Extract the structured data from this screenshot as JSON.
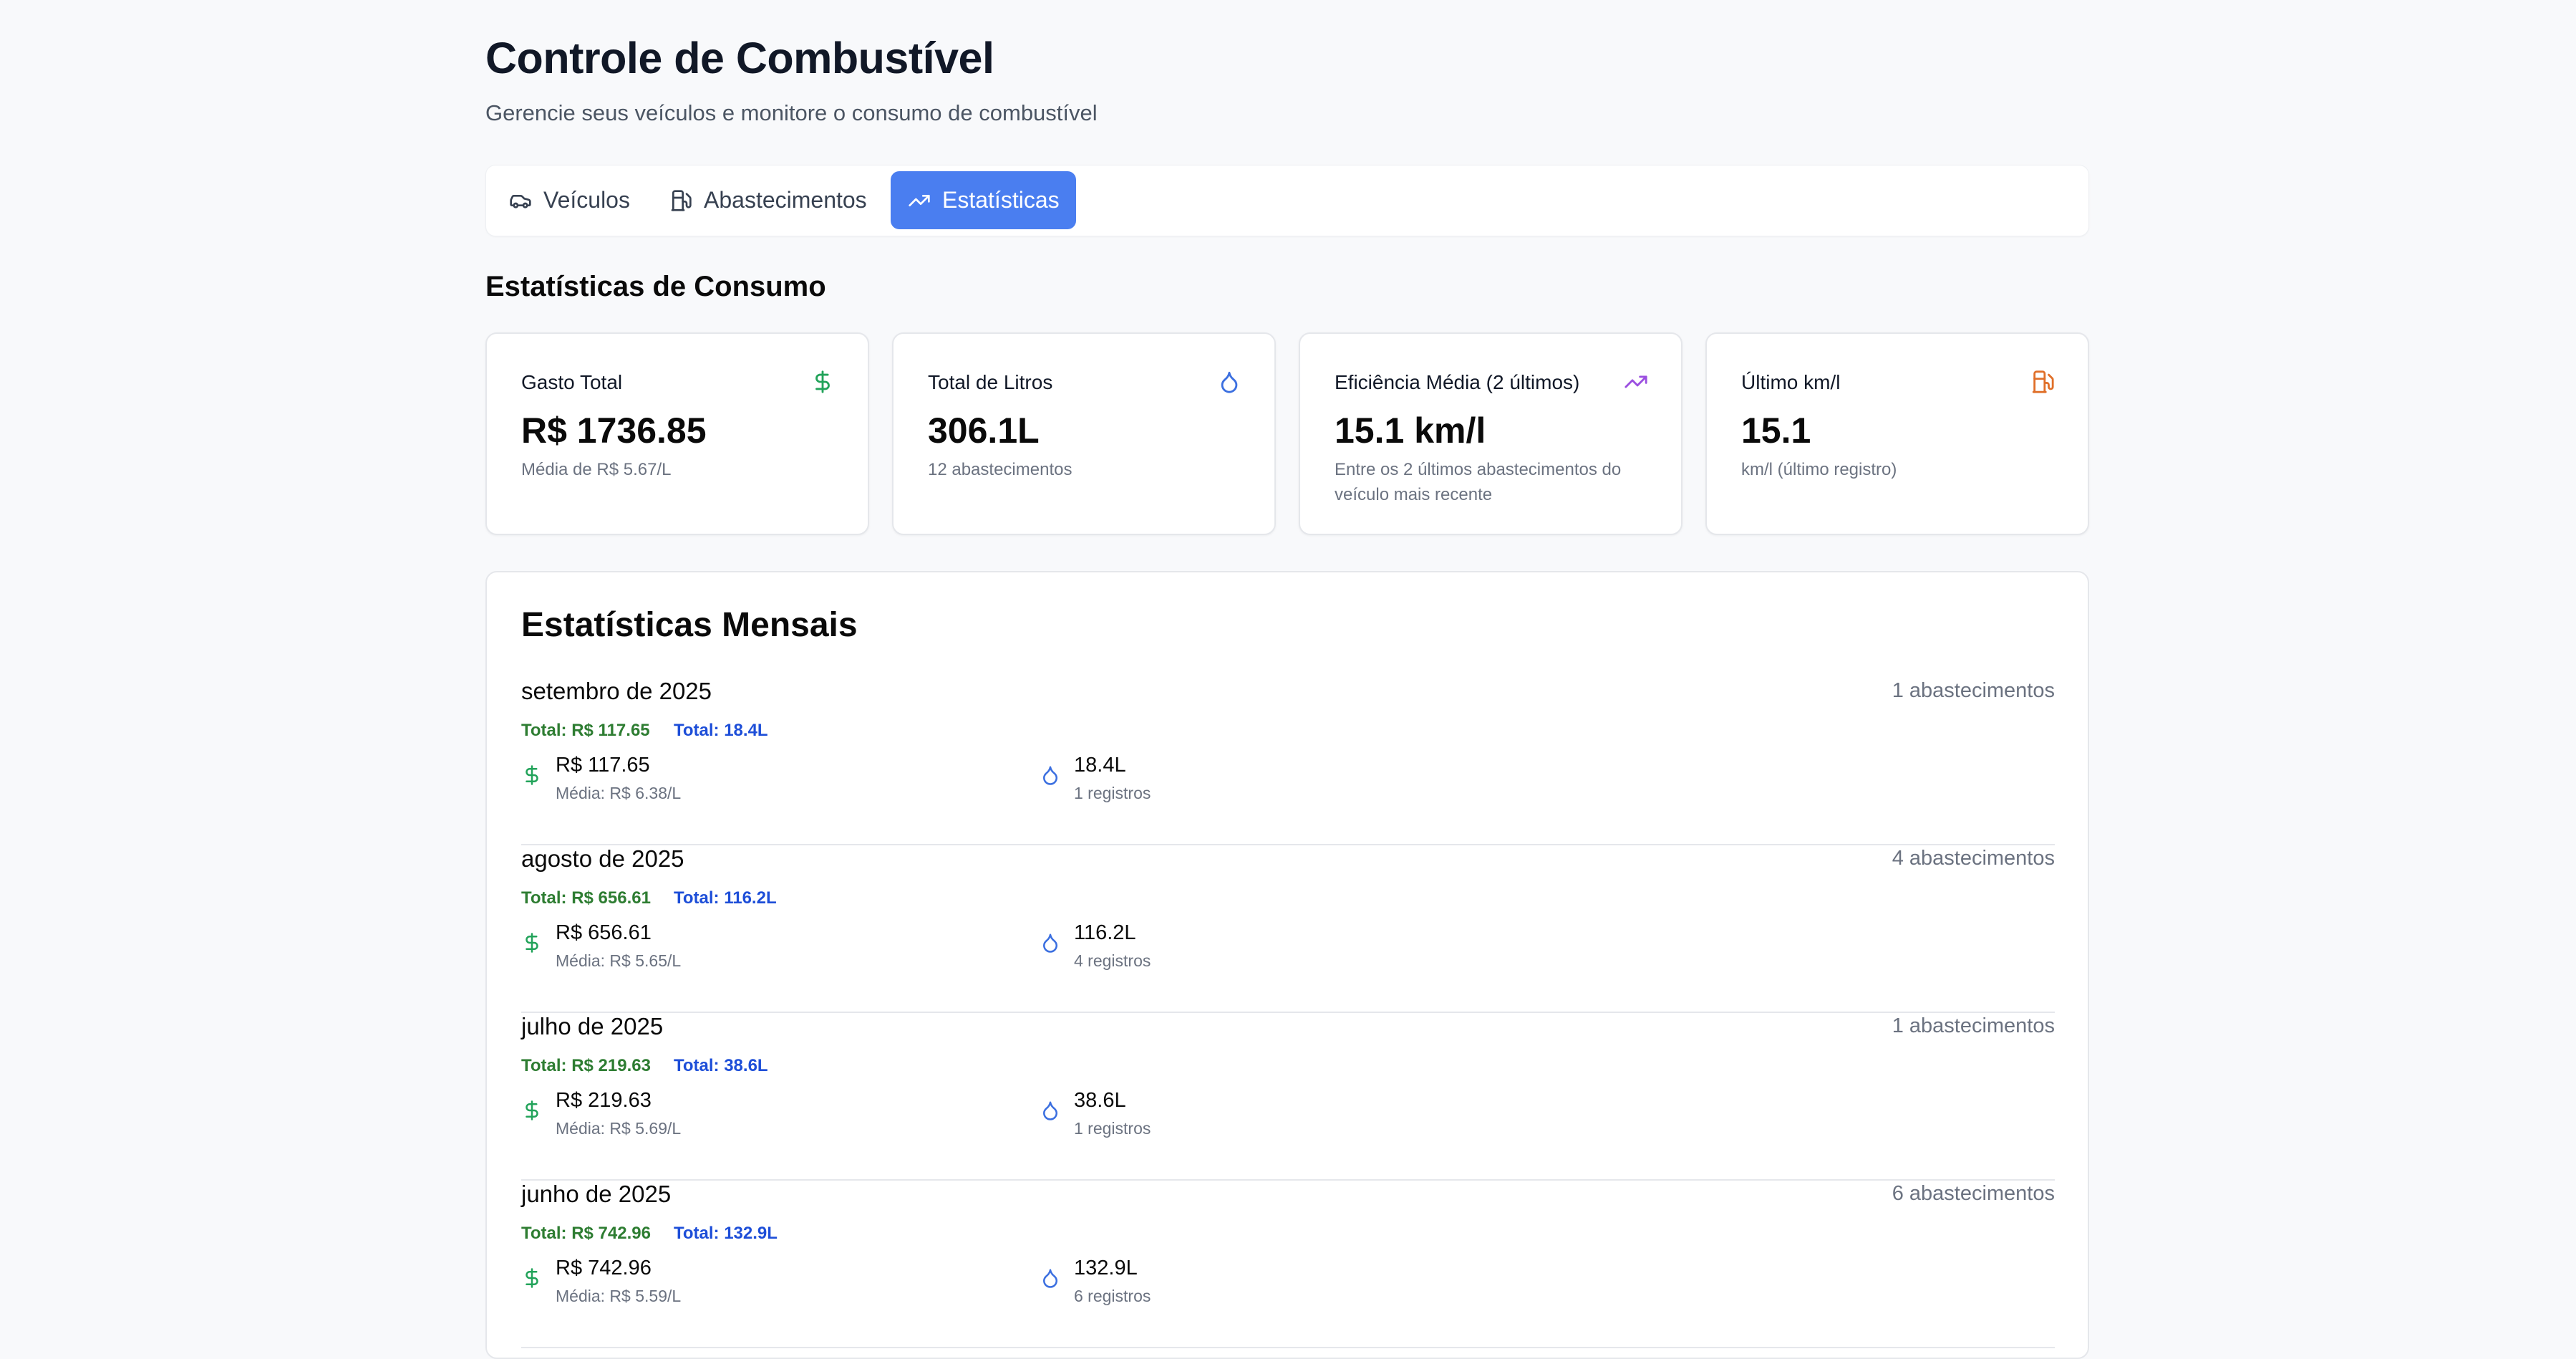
{
  "header": {
    "title": "Controle de Combustível",
    "subtitle": "Gerencie seus veículos e monitore o consumo de combustível"
  },
  "tabs": [
    {
      "label": "Veículos",
      "icon": "car-icon",
      "active": false
    },
    {
      "label": "Abastecimentos",
      "icon": "fuel-pump-icon",
      "active": false
    },
    {
      "label": "Estatísticas",
      "icon": "trending-up-icon",
      "active": true
    }
  ],
  "stats": {
    "title": "Estatísticas de Consumo",
    "cards": [
      {
        "label": "Gasto Total",
        "value": "R$ 1736.85",
        "sub": "Média de R$ 5.67/L",
        "icon": "dollar-icon",
        "color": "#22a35a"
      },
      {
        "label": "Total de Litros",
        "value": "306.1L",
        "sub": "12 abastecimentos",
        "icon": "droplet-icon",
        "color": "#3b6fe0"
      },
      {
        "label": "Eficiência Média (2 últimos)",
        "value": "15.1 km/l",
        "sub": "Entre os 2 últimos abastecimentos do veículo mais recente",
        "icon": "trending-up-icon",
        "color": "#9b4fe0"
      },
      {
        "label": "Último km/l",
        "value": "15.1",
        "sub": "km/l (último registro)",
        "icon": "fuel-pump-icon",
        "color": "#e0702a"
      }
    ]
  },
  "monthly": {
    "title": "Estatísticas Mensais",
    "months": [
      {
        "name": "setembro de 2025",
        "count": "1 abastecimentos",
        "total_money": "Total: R$ 117.65",
        "total_liters": "Total: 18.4L",
        "money": "R$ 117.65",
        "avg": "Média: R$ 6.38/L",
        "liters": "18.4L",
        "records": "1 registros"
      },
      {
        "name": "agosto de 2025",
        "count": "4 abastecimentos",
        "total_money": "Total: R$ 656.61",
        "total_liters": "Total: 116.2L",
        "money": "R$ 656.61",
        "avg": "Média: R$ 5.65/L",
        "liters": "116.2L",
        "records": "4 registros"
      },
      {
        "name": "julho de 2025",
        "count": "1 abastecimentos",
        "total_money": "Total: R$ 219.63",
        "total_liters": "Total: 38.6L",
        "money": "R$ 219.63",
        "avg": "Média: R$ 5.69/L",
        "liters": "38.6L",
        "records": "1 registros"
      },
      {
        "name": "junho de 2025",
        "count": "6 abastecimentos",
        "total_money": "Total: R$ 742.96",
        "total_liters": "Total: 132.9L",
        "money": "R$ 742.96",
        "avg": "Média: R$ 5.59/L",
        "liters": "132.9L",
        "records": "6 registros"
      }
    ]
  },
  "colors": {
    "accent": "#4a7ef0",
    "money_green": "#2e7d32",
    "liters_blue": "#1d4ed8",
    "icon_green": "#22a35a",
    "icon_blue": "#3b6fe0"
  }
}
